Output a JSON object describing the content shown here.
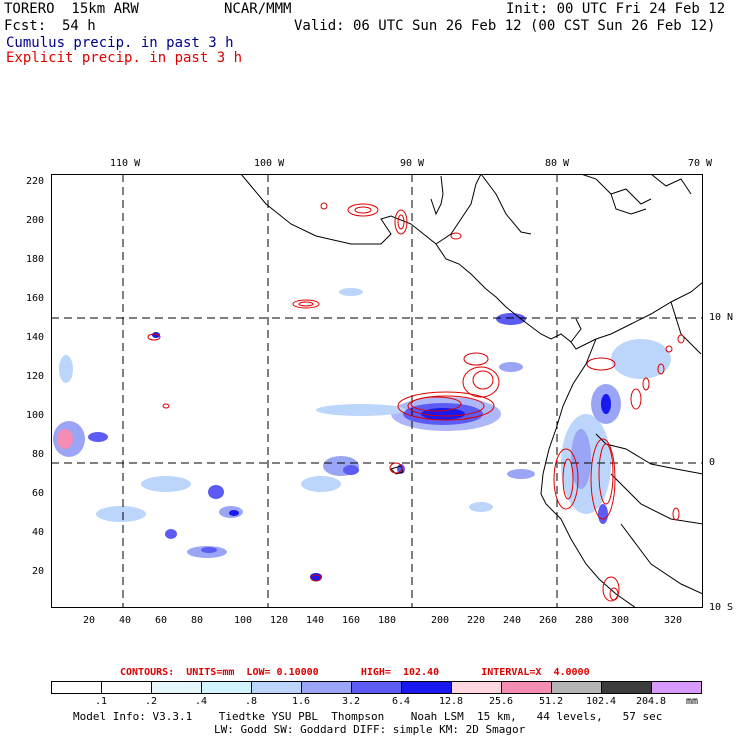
{
  "header": {
    "model": "TORERO  15km ARW",
    "org": "NCAR/MMM",
    "init": "Init: 00 UTC Fri 24 Feb 12",
    "fcst_label": "Fcst:",
    "fcst_value": "54 h",
    "valid": "Valid: 06 UTC Sun 26 Feb 12 (00 CST Sun 26 Feb 12)",
    "field1": "Cumulus precip. in past 3 h",
    "field2": "Explicit precip. in past 3 h"
  },
  "colors": {
    "field1": "#00008b",
    "field2": "#dd0000",
    "coast": "#000000",
    "grid": "#000000"
  },
  "axes": {
    "top_ticks": [
      "110 W",
      "100 W",
      "90 W",
      "80 W",
      "70 W"
    ],
    "left_ticks": [
      "220",
      "200",
      "180",
      "160",
      "140",
      "120",
      "100",
      "80",
      "60",
      "40",
      "20"
    ],
    "bottom_ticks": [
      "20",
      "40",
      "60",
      "80",
      "100",
      "120",
      "140",
      "160",
      "180",
      "200",
      "220",
      "240",
      "260",
      "280",
      "300",
      "320"
    ],
    "right_ticks": [
      "10 N",
      "0",
      "10 S"
    ]
  },
  "contour_info": "CONTOURS:  UNITS=mm  LOW= 0.10000       HIGH=  102.40       INTERVAL=X  4.0000",
  "colorbar": {
    "labels": [
      ".1",
      ".2",
      ".4",
      ".8",
      "1.6",
      "3.2",
      "6.4",
      "12.8",
      "25.6",
      "51.2",
      "102.4",
      "204.8"
    ],
    "colors": [
      "#ffffff",
      "#ffffff",
      "#e6f7fb",
      "#d2f4ff",
      "#bcd5fb",
      "#9aa5f5",
      "#5c5cf5",
      "#1818ef",
      "#ffd7e1",
      "#f58cb4",
      "#b4b4b4",
      "#3c3c3c",
      "#d79bff"
    ],
    "unit": "mm"
  },
  "footer": {
    "line1": "Model Info: V3.3.1    Tiedtke YSU PBL  Thompson    Noah LSM  15 km,   44 levels,   57 sec",
    "line2": "LW: Godd SW: Goddard DIFF: simple KM: 2D Smagor"
  }
}
